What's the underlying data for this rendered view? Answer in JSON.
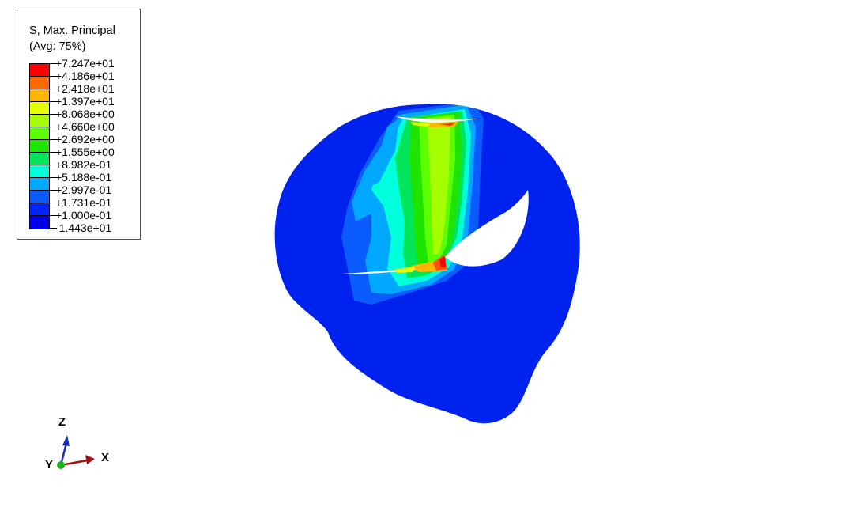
{
  "legend": {
    "title_line1": "S, Max. Principal",
    "title_line2": "(Avg: 75%)",
    "swatch_colors": [
      "#ff0000",
      "#ff6a00",
      "#ffb400",
      "#e4ff00",
      "#a6ff00",
      "#5cff00",
      "#1ee400",
      "#00e55a",
      "#00ffdb",
      "#00a8ff",
      "#0a5cff",
      "#0024ff",
      "#0000e6"
    ],
    "values": [
      "+7.247e+01",
      "+4.186e+01",
      "+2.418e+01",
      "+1.397e+01",
      "+8.068e+00",
      "+4.660e+00",
      "+2.692e+00",
      "+1.555e+00",
      "+8.982e-01",
      "+5.188e-01",
      "+2.997e-01",
      "+1.731e-01",
      "+1.000e-01",
      "-1.443e+01"
    ]
  },
  "triad": {
    "z_label": "Z",
    "x_label": "X",
    "y_label": "Y",
    "colors": {
      "z": "#1a2fb5",
      "x": "#a01010",
      "y": "#1ab41a"
    }
  },
  "model": {
    "base_color": "#0022ee"
  }
}
